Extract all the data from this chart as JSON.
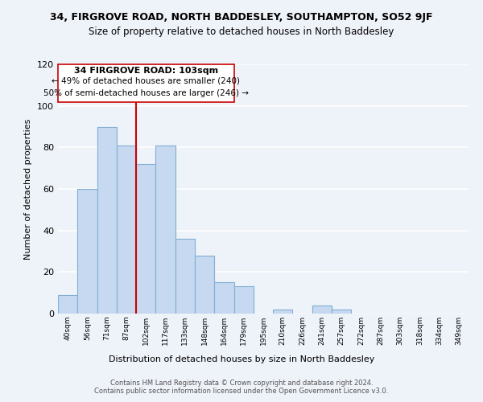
{
  "title": "34, FIRGROVE ROAD, NORTH BADDESLEY, SOUTHAMPTON, SO52 9JF",
  "subtitle": "Size of property relative to detached houses in North Baddesley",
  "xlabel": "Distribution of detached houses by size in North Baddesley",
  "ylabel": "Number of detached properties",
  "bar_labels": [
    "40sqm",
    "56sqm",
    "71sqm",
    "87sqm",
    "102sqm",
    "117sqm",
    "133sqm",
    "148sqm",
    "164sqm",
    "179sqm",
    "195sqm",
    "210sqm",
    "226sqm",
    "241sqm",
    "257sqm",
    "272sqm",
    "287sqm",
    "303sqm",
    "318sqm",
    "334sqm",
    "349sqm"
  ],
  "bar_values": [
    9,
    60,
    90,
    81,
    72,
    81,
    36,
    28,
    15,
    13,
    0,
    2,
    0,
    4,
    2,
    0,
    0,
    0,
    0,
    0,
    0
  ],
  "bar_color": "#c6d9f0",
  "bar_edge_color": "#7fafd4",
  "reference_line_label": "34 FIRGROVE ROAD: 103sqm",
  "annotation_smaller": "← 49% of detached houses are smaller (240)",
  "annotation_larger": "50% of semi-detached houses are larger (246) →",
  "vline_color": "#cc0000",
  "vline_x": 3.5,
  "ylim": [
    0,
    120
  ],
  "yticks": [
    0,
    20,
    40,
    60,
    80,
    100,
    120
  ],
  "background_color": "#eef2f9",
  "grid_color": "#ffffff",
  "footer_line1": "Contains HM Land Registry data © Crown copyright and database right 2024.",
  "footer_line2": "Contains public sector information licensed under the Open Government Licence v3.0."
}
